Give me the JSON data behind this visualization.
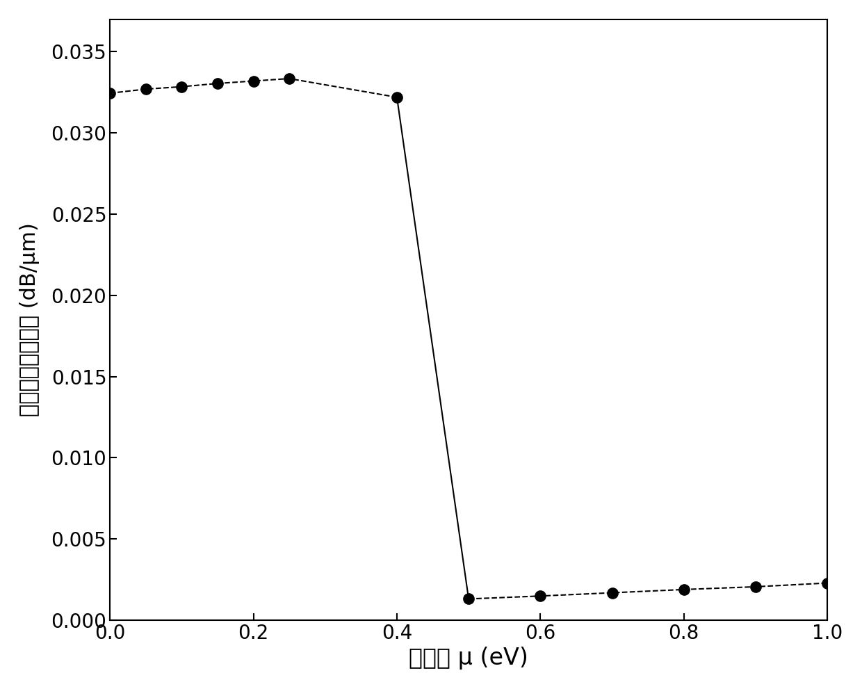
{
  "x": [
    0.0,
    0.05,
    0.1,
    0.15,
    0.2,
    0.25,
    0.4,
    0.5,
    0.6,
    0.7,
    0.8,
    0.9,
    1.0
  ],
  "y": [
    0.03245,
    0.0327,
    0.03285,
    0.03305,
    0.0332,
    0.03335,
    0.0322,
    0.0013,
    0.00148,
    0.00168,
    0.00188,
    0.00205,
    0.00228
  ],
  "marker": "o",
  "marker_size": 11,
  "line_color": "#000000",
  "marker_color": "#000000",
  "line_style_dashed": "--",
  "line_style_solid": "-",
  "xlabel": "化学势 μ (eV)",
  "ylabel": "单位长度传输损耗 (dB/μm)",
  "xlim": [
    0.0,
    1.0
  ],
  "ylim": [
    0.0,
    0.037
  ],
  "yticks": [
    0.0,
    0.005,
    0.01,
    0.015,
    0.02,
    0.025,
    0.03,
    0.035
  ],
  "xticks": [
    0.0,
    0.2,
    0.4,
    0.6,
    0.8,
    1.0
  ],
  "xlabel_fontsize": 24,
  "ylabel_fontsize": 22,
  "tick_fontsize": 20,
  "figure_width": 12.4,
  "figure_height": 9.91,
  "dpi": 100
}
